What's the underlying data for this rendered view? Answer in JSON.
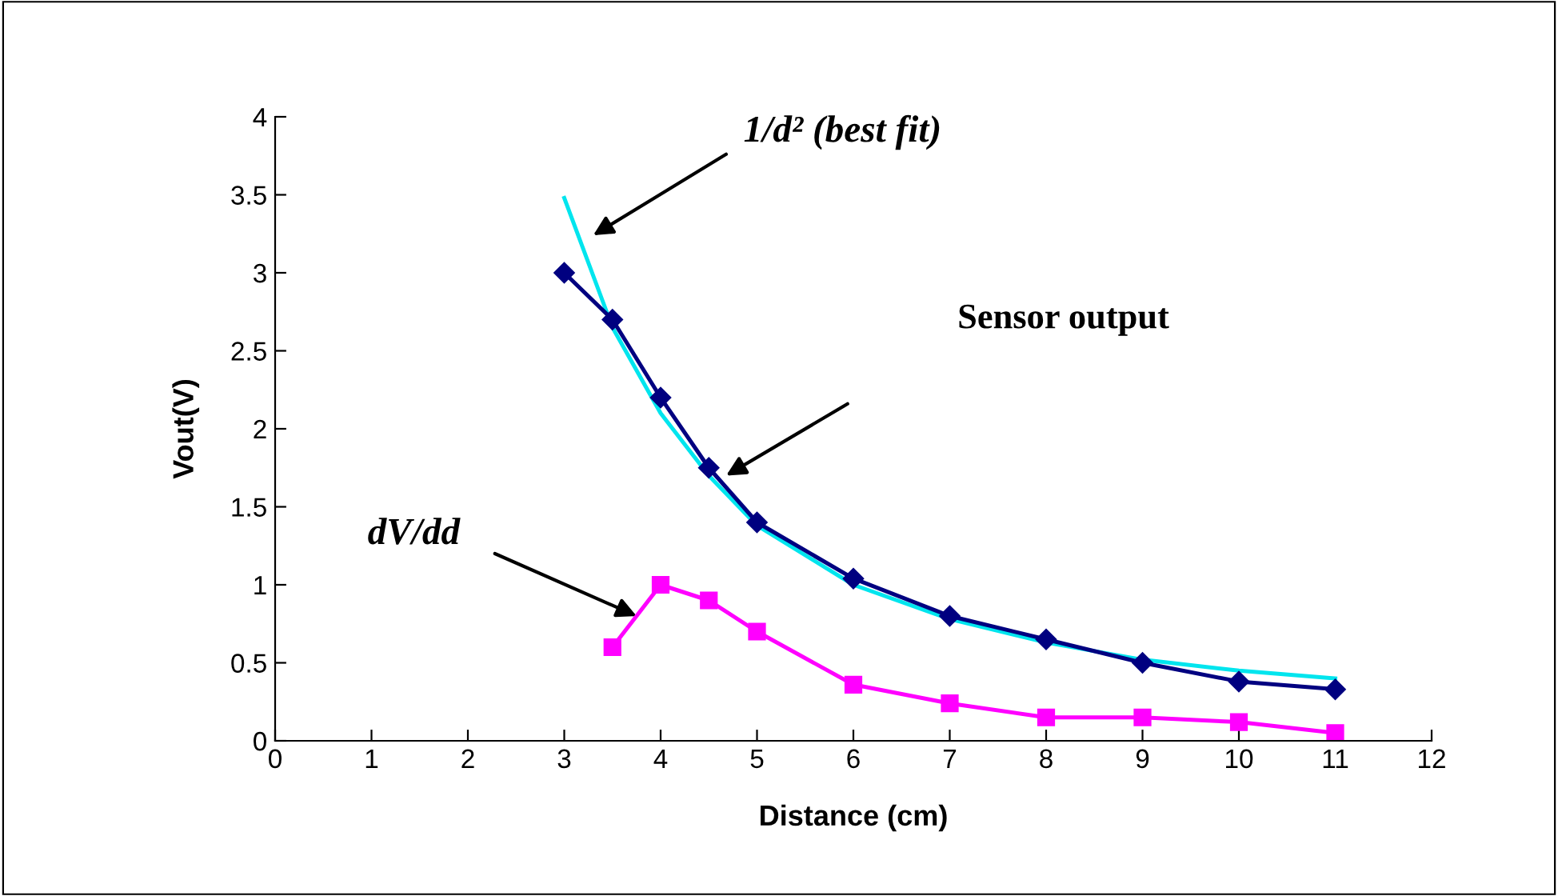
{
  "chart_data": {
    "type": "line",
    "xlabel": "Distance (cm)",
    "ylabel": "Vout(V)",
    "xlim": [
      0,
      12
    ],
    "xticks": [
      0,
      1,
      2,
      3,
      4,
      5,
      6,
      7,
      8,
      9,
      10,
      11,
      12
    ],
    "ylim": [
      0,
      4
    ],
    "yticks": [
      0,
      0.5,
      1,
      1.5,
      2,
      2.5,
      3,
      3.5,
      4
    ],
    "grid": false,
    "series": [
      {
        "color": "#00e5ee",
        "marker": "none",
        "x": [
          3,
          3.5,
          4,
          4.5,
          5,
          6,
          7,
          8,
          9,
          10,
          11
        ],
        "values": [
          3.48,
          2.65,
          2.1,
          1.7,
          1.38,
          1.0,
          0.78,
          0.63,
          0.52,
          0.45,
          0.4
        ]
      },
      {
        "color": "#000080",
        "marker": "diamond",
        "x": [
          3,
          3.5,
          4,
          4.5,
          5,
          6,
          7,
          8,
          9,
          10,
          11
        ],
        "values": [
          3.0,
          2.7,
          2.2,
          1.75,
          1.4,
          1.04,
          0.8,
          0.65,
          0.5,
          0.38,
          0.33
        ]
      },
      {
        "color": "#ff00ff",
        "marker": "square",
        "x": [
          3.5,
          4,
          4.5,
          5,
          6,
          7,
          8,
          9,
          10,
          11
        ],
        "values": [
          0.6,
          1.0,
          0.9,
          0.7,
          0.36,
          0.24,
          0.15,
          0.15,
          0.12,
          0.05
        ]
      }
    ],
    "annotations": [
      "1/d² (best fit)",
      "Sensor output",
      {
        "text": "dV/dd",
        "x": 3.75,
        "y": 0.8
      }
    ]
  }
}
